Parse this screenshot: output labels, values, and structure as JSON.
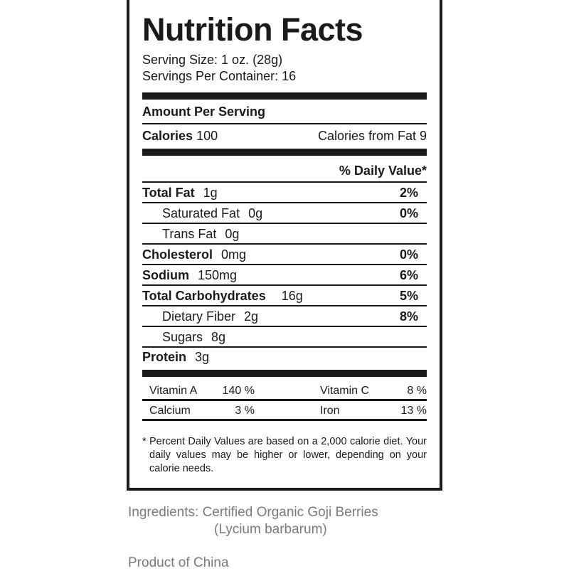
{
  "label": {
    "title": "Nutrition Facts",
    "serving_size": "Serving Size: 1 oz. (28g)",
    "servings_per_container": "Servings Per Container: 16",
    "amount_per_serving": "Amount Per Serving",
    "calories_label": "Calories",
    "calories_value": "100",
    "calories_from_fat": "Calories from Fat 9",
    "daily_value_header": "% Daily Value*",
    "nutrients": [
      {
        "name": "Total Fat",
        "amount": "1g",
        "pct": "2%"
      },
      {
        "name": "Saturated Fat",
        "amount": "0g",
        "pct": "0%"
      },
      {
        "name": "Trans Fat",
        "amount": "0g",
        "pct": ""
      },
      {
        "name": "Cholesterol",
        "amount": "0mg",
        "pct": "0%"
      },
      {
        "name": "Sodium",
        "amount": "150mg",
        "pct": "6%"
      },
      {
        "name": "Total Carbohydrates",
        "amount": "16g",
        "pct": "5%"
      },
      {
        "name": "Dietary Fiber",
        "amount": "2g",
        "pct": "8%"
      },
      {
        "name": "Sugars",
        "amount": "8g",
        "pct": ""
      },
      {
        "name": "Protein",
        "amount": "3g",
        "pct": ""
      }
    ],
    "vitamins": [
      [
        {
          "name": "Vitamin A",
          "pct": "140 %"
        },
        {
          "name": "Vitamin C",
          "pct": "8 %"
        }
      ],
      [
        {
          "name": "Calcium",
          "pct": "3 %"
        },
        {
          "name": "Iron",
          "pct": "13 %"
        }
      ]
    ],
    "footnote_mark": "*",
    "footnote": "Percent Daily Values are based on a 2,000 calorie diet. Your daily values may be higher or lower, depending on your calorie needs."
  },
  "ingredients_line1": "Ingredients: Certified Organic Goji Berries",
  "ingredients_line2": "(Lycium barbarum)",
  "origin": "Product of China"
}
